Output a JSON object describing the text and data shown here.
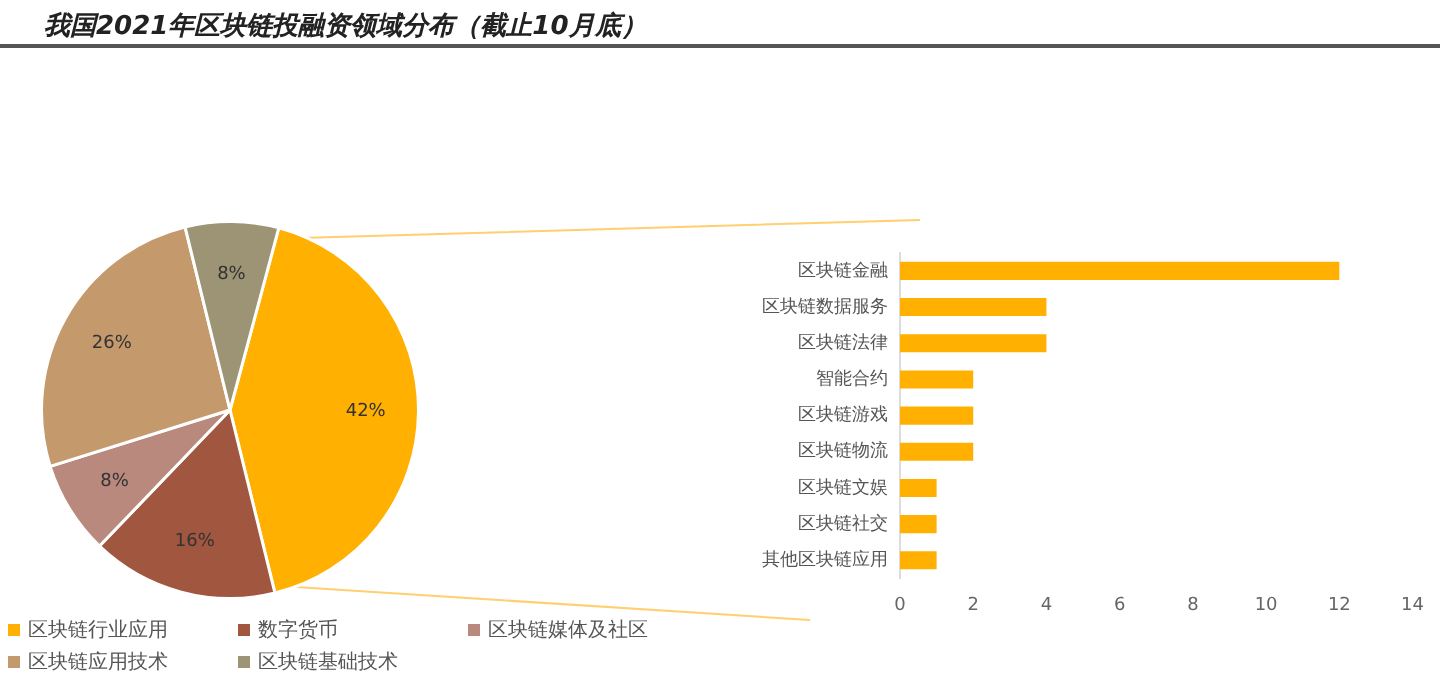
{
  "chart_data": [
    {
      "type": "pie",
      "title": "我国2021年区块链投融资领域分布（截止10月底）",
      "categories": [
        "区块链行业应用",
        "数字货币",
        "区块链媒体及社区",
        "区块链应用技术",
        "区块链基础技术"
      ],
      "values": [
        42,
        16,
        8,
        26,
        8
      ],
      "colors": [
        "#ffb000",
        "#a0563f",
        "#b9897d",
        "#c49a6c",
        "#9c9474"
      ],
      "value_labels": [
        "42%",
        "16%",
        "8%",
        "26%",
        "8%"
      ],
      "legend": "bottom"
    },
    {
      "type": "bar",
      "orientation": "horizontal",
      "categories": [
        "区块链金融",
        "区块链数据服务",
        "区块链法律",
        "智能合约",
        "区块链游戏",
        "区块链物流",
        "区块链文娱",
        "区块链社交",
        "其他区块链应用"
      ],
      "values": [
        12,
        4,
        4,
        2,
        2,
        2,
        1,
        1,
        1
      ],
      "color": "#ffb000",
      "xlim": [
        0,
        14
      ],
      "xticks": [
        0,
        2,
        4,
        6,
        8,
        10,
        12,
        14
      ],
      "grid": false
    }
  ]
}
